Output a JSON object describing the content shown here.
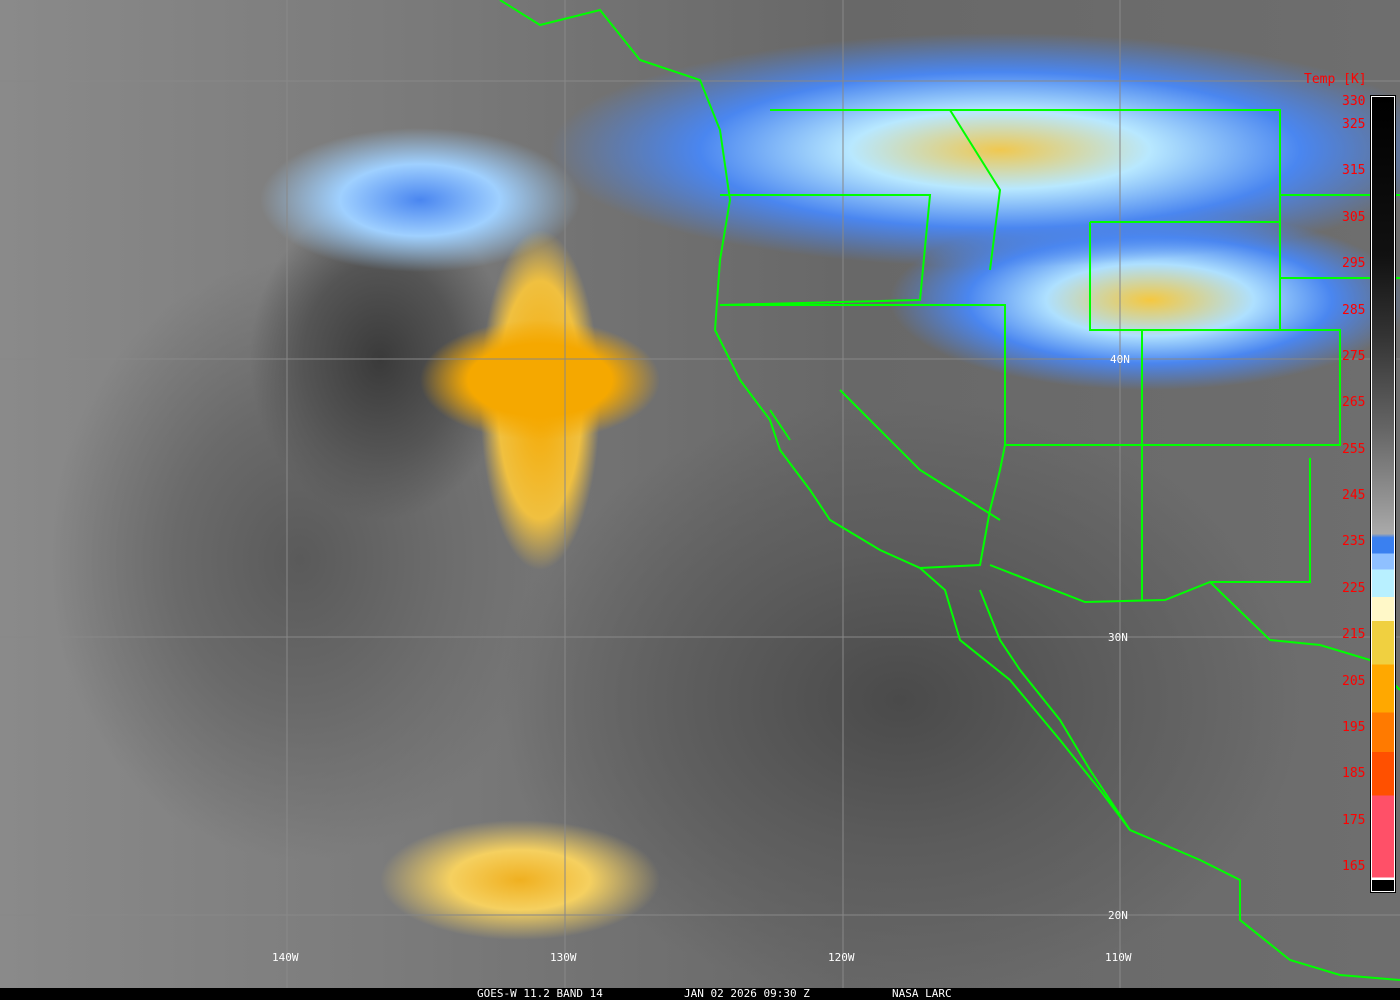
{
  "legend": {
    "title": "Temp [K]",
    "ticks": [
      "330",
      "325",
      "315",
      "305",
      "295",
      "285",
      "275",
      "265",
      "255",
      "245",
      "235",
      "225",
      "215",
      "205",
      "195",
      "185",
      "175",
      "165"
    ],
    "colors": {
      "cold_blue": "#3a80f0",
      "light_blue": "#8fc0ff",
      "cyan": "#b8f0ff",
      "cream": "#fff8c8",
      "yellow": "#f0d040",
      "orange": "#ffa800",
      "dark_orange": "#ff7a00",
      "red_orange": "#ff5000",
      "pink": "#ff5068",
      "boundary": "#00ff00",
      "label": "#ff0000"
    }
  },
  "gridlabels": {
    "lon": [
      "140W",
      "130W",
      "120W",
      "110W"
    ],
    "lat": [
      "40N",
      "30N",
      "20N"
    ]
  },
  "footer": {
    "sensor": "GOES-W 11.2 BAND 14",
    "datetime": "JAN 02 2026 09:30 Z",
    "credit": "NASA LARC"
  }
}
